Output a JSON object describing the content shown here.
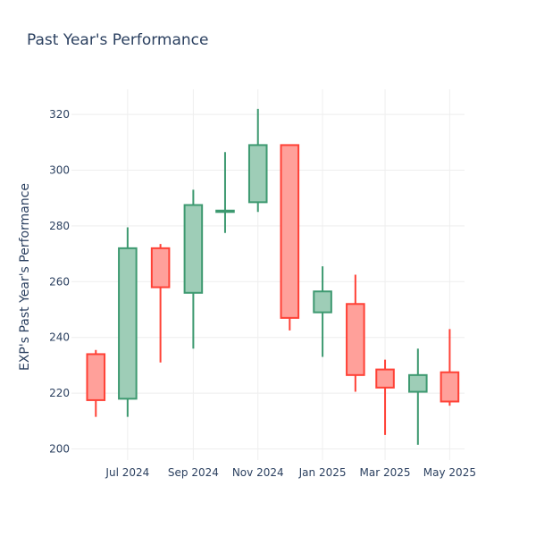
{
  "chart_data": {
    "type": "candlestick",
    "title": "Past Year's Performance",
    "ylabel": "EXP's Past Year's Performance",
    "xlabel": "",
    "ylim": [
      196,
      329
    ],
    "y_ticks": [
      200,
      220,
      240,
      260,
      280,
      300,
      320
    ],
    "x_ticks": [
      {
        "label": "Jul 2024",
        "x": "2024-07-01"
      },
      {
        "label": "Sep 2024",
        "x": "2024-09-01"
      },
      {
        "label": "Nov 2024",
        "x": "2024-11-01"
      },
      {
        "label": "Jan 2025",
        "x": "2025-01-01"
      },
      {
        "label": "Mar 2025",
        "x": "2025-03-01"
      },
      {
        "label": "May 2025",
        "x": "2025-05-01"
      }
    ],
    "xlim": [
      "2024-05-09",
      "2025-05-15"
    ],
    "grid": true,
    "colors": {
      "increasing_line": "#3d9970",
      "increasing_fill": "#9ecdb7",
      "decreasing_line": "#ff4136",
      "decreasing_fill": "#ffa09a"
    },
    "candles": [
      {
        "x": "2024-06-01",
        "open": 234.0,
        "high": 235.5,
        "low": 211.5,
        "close": 217.5
      },
      {
        "x": "2024-07-01",
        "open": 218.0,
        "high": 279.5,
        "low": 211.5,
        "close": 272.0
      },
      {
        "x": "2024-08-01",
        "open": 272.0,
        "high": 273.5,
        "low": 231.0,
        "close": 258.0
      },
      {
        "x": "2024-09-01",
        "open": 256.0,
        "high": 293.0,
        "low": 236.0,
        "close": 287.5
      },
      {
        "x": "2024-10-01",
        "open": 285.0,
        "high": 306.5,
        "low": 277.5,
        "close": 285.5
      },
      {
        "x": "2024-11-01",
        "open": 288.5,
        "high": 322.0,
        "low": 285.0,
        "close": 309.0
      },
      {
        "x": "2024-12-01",
        "open": 309.0,
        "high": 309.0,
        "low": 242.5,
        "close": 247.0
      },
      {
        "x": "2025-01-01",
        "open": 249.0,
        "high": 265.5,
        "low": 233.0,
        "close": 256.5
      },
      {
        "x": "2025-02-01",
        "open": 252.0,
        "high": 262.5,
        "low": 220.5,
        "close": 226.5
      },
      {
        "x": "2025-03-01",
        "open": 228.5,
        "high": 232.0,
        "low": 205.0,
        "close": 222.0
      },
      {
        "x": "2025-04-01",
        "open": 220.5,
        "high": 236.0,
        "low": 201.5,
        "close": 226.5
      },
      {
        "x": "2025-05-01",
        "open": 227.5,
        "high": 243.0,
        "low": 215.5,
        "close": 217.0
      }
    ]
  }
}
